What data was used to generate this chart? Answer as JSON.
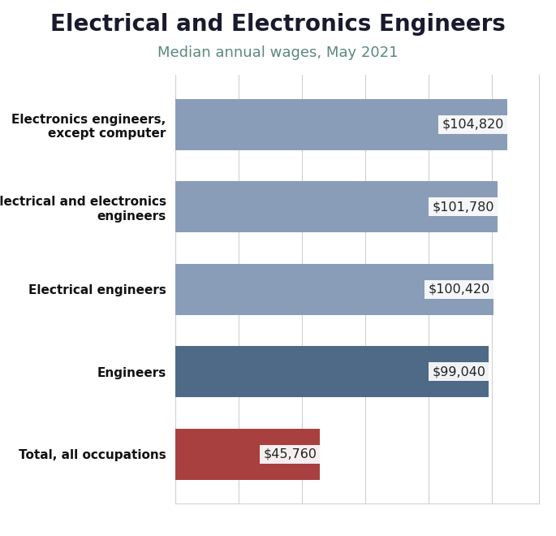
{
  "title": "Electrical and Electronics Engineers",
  "subtitle": "Median annual wages, May 2021",
  "categories": [
    "Total, all occupations",
    "Engineers",
    "Electrical engineers",
    "Electrical and electronics\nengineers",
    "Electronics engineers,\nexcept computer"
  ],
  "values": [
    45760,
    99040,
    100420,
    101780,
    104820
  ],
  "labels": [
    "$45,760",
    "$99,040",
    "$100,420",
    "$101,780",
    "$104,820"
  ],
  "bar_colors": [
    "#a84040",
    "#4e6a87",
    "#8a9db8",
    "#8a9db8",
    "#8a9db8"
  ],
  "title_fontsize": 20,
  "subtitle_fontsize": 13,
  "subtitle_color": "#5a8a78",
  "label_fontsize": 11.5,
  "ylabel_fontsize": 11,
  "xlim": [
    0,
    115000
  ],
  "background_color": "#ffffff",
  "grid_color": "#d0d0d0",
  "bar_height": 0.62,
  "title_color": "#1a1a2e"
}
